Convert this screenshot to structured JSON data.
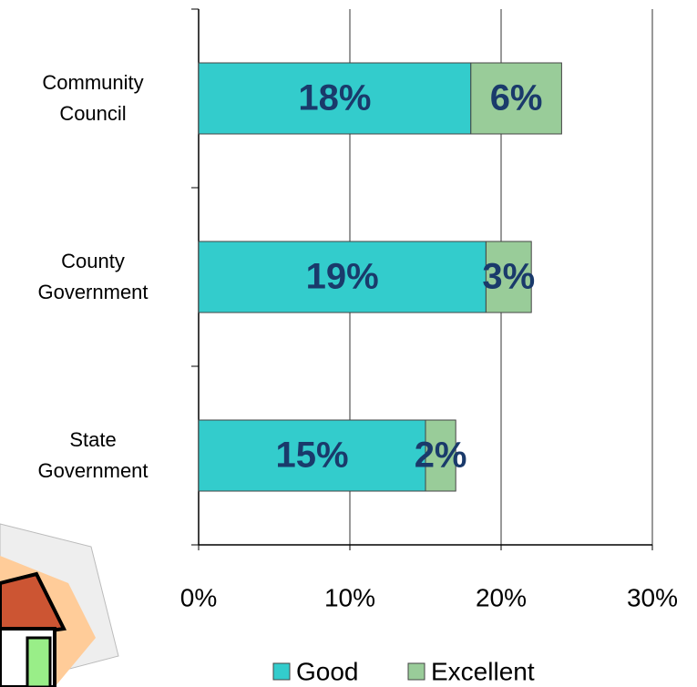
{
  "chart_data": {
    "type": "stacked-barh",
    "categories": [
      "Community Council",
      "County Government",
      "State Government"
    ],
    "series": [
      {
        "name": "Good",
        "color": "#33cccc",
        "values": [
          18,
          19,
          15
        ],
        "value_labels": [
          "18%",
          "19%",
          "15%"
        ]
      },
      {
        "name": "Excellent",
        "color": "#99cc99",
        "values": [
          6,
          3,
          2
        ],
        "value_labels": [
          "6%",
          "3%",
          "2%"
        ]
      }
    ],
    "xlim": [
      0,
      30
    ],
    "xticks": [
      {
        "value": 0,
        "label": "0%"
      },
      {
        "value": 10,
        "label": "10%"
      },
      {
        "value": 20,
        "label": "20%"
      },
      {
        "value": 30,
        "label": "30%"
      }
    ],
    "grid": true,
    "legend": "bottom"
  }
}
